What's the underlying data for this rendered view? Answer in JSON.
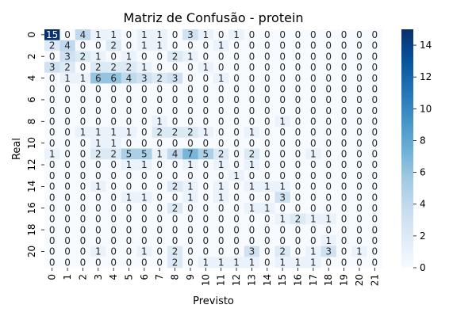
{
  "chart_data": {
    "type": "heatmap",
    "title": "Matriz de Confusão - protein",
    "xlabel": "Previsto",
    "ylabel": "Real",
    "x_tick_labels": [
      "0",
      "1",
      "2",
      "3",
      "4",
      "5",
      "6",
      "7",
      "8",
      "9",
      "10",
      "11",
      "12",
      "13",
      "14",
      "15",
      "16",
      "17",
      "18",
      "19",
      "20",
      "21"
    ],
    "y_tick_labels": [
      "0",
      "2",
      "4",
      "6",
      "8",
      "10",
      "12",
      "14",
      "16",
      "18",
      "20"
    ],
    "y_tick_rows": [
      0,
      2,
      4,
      6,
      8,
      10,
      12,
      14,
      16,
      18,
      20
    ],
    "rows": 22,
    "cols": 22,
    "vmin": 0,
    "vmax": 15,
    "colorbar_ticks": [
      0,
      2,
      4,
      6,
      8,
      10,
      12,
      14
    ],
    "colorbar_labels": [
      "0",
      "2",
      "4",
      "6",
      "8",
      "10",
      "12",
      "14"
    ],
    "colormap": [
      "#f7fbff",
      "#deebf7",
      "#c6dbef",
      "#9ecae1",
      "#6baed6",
      "#4292c6",
      "#2171b5",
      "#08519c",
      "#08306b"
    ],
    "matrix": [
      [
        15,
        0,
        4,
        1,
        1,
        0,
        1,
        1,
        0,
        3,
        1,
        0,
        1,
        0,
        0,
        0,
        0,
        0,
        0,
        0,
        0,
        0
      ],
      [
        2,
        4,
        0,
        0,
        2,
        0,
        1,
        1,
        0,
        0,
        0,
        1,
        0,
        0,
        0,
        0,
        0,
        0,
        0,
        0,
        0,
        0
      ],
      [
        0,
        3,
        2,
        1,
        0,
        1,
        0,
        0,
        2,
        1,
        0,
        0,
        0,
        0,
        0,
        0,
        0,
        0,
        0,
        0,
        0,
        0
      ],
      [
        3,
        2,
        0,
        2,
        2,
        2,
        1,
        0,
        0,
        0,
        1,
        0,
        0,
        0,
        0,
        0,
        0,
        0,
        0,
        0,
        0,
        0
      ],
      [
        0,
        1,
        1,
        6,
        6,
        4,
        3,
        2,
        3,
        0,
        0,
        1,
        0,
        0,
        0,
        0,
        0,
        0,
        0,
        0,
        0,
        0
      ],
      [
        0,
        0,
        0,
        0,
        0,
        0,
        0,
        0,
        0,
        0,
        0,
        0,
        0,
        0,
        0,
        0,
        0,
        0,
        0,
        0,
        0,
        0
      ],
      [
        0,
        0,
        0,
        0,
        0,
        0,
        0,
        0,
        0,
        0,
        0,
        0,
        0,
        0,
        0,
        0,
        0,
        0,
        0,
        0,
        0,
        0
      ],
      [
        0,
        0,
        0,
        0,
        0,
        0,
        0,
        0,
        0,
        0,
        0,
        0,
        0,
        0,
        0,
        0,
        0,
        0,
        0,
        0,
        0,
        0
      ],
      [
        0,
        0,
        0,
        0,
        0,
        0,
        0,
        1,
        0,
        0,
        0,
        0,
        0,
        0,
        0,
        1,
        0,
        0,
        0,
        0,
        0,
        0
      ],
      [
        0,
        0,
        1,
        1,
        1,
        1,
        0,
        2,
        2,
        2,
        1,
        0,
        0,
        1,
        0,
        0,
        0,
        0,
        0,
        0,
        0,
        0
      ],
      [
        0,
        0,
        0,
        1,
        1,
        0,
        0,
        0,
        0,
        0,
        0,
        0,
        0,
        0,
        0,
        0,
        0,
        0,
        0,
        0,
        0,
        0
      ],
      [
        1,
        0,
        0,
        2,
        2,
        5,
        5,
        1,
        4,
        7,
        5,
        2,
        0,
        2,
        0,
        0,
        0,
        1,
        0,
        0,
        0,
        0
      ],
      [
        0,
        0,
        0,
        0,
        0,
        1,
        1,
        0,
        0,
        1,
        0,
        1,
        0,
        1,
        0,
        0,
        0,
        0,
        0,
        0,
        0,
        0
      ],
      [
        0,
        0,
        0,
        0,
        0,
        0,
        0,
        0,
        0,
        0,
        0,
        0,
        1,
        0,
        0,
        0,
        0,
        0,
        0,
        0,
        0,
        0
      ],
      [
        0,
        0,
        0,
        1,
        0,
        0,
        0,
        0,
        2,
        1,
        0,
        1,
        0,
        1,
        1,
        1,
        0,
        0,
        0,
        0,
        0,
        0
      ],
      [
        0,
        0,
        0,
        0,
        0,
        1,
        1,
        0,
        0,
        1,
        0,
        1,
        0,
        0,
        0,
        3,
        0,
        0,
        0,
        0,
        0,
        0
      ],
      [
        0,
        0,
        0,
        0,
        0,
        0,
        0,
        0,
        2,
        0,
        0,
        0,
        0,
        1,
        1,
        0,
        0,
        0,
        0,
        0,
        0,
        0
      ],
      [
        0,
        0,
        0,
        0,
        0,
        0,
        0,
        0,
        0,
        0,
        0,
        0,
        0,
        0,
        0,
        1,
        2,
        1,
        1,
        0,
        0,
        0
      ],
      [
        0,
        0,
        0,
        0,
        0,
        0,
        0,
        0,
        0,
        0,
        0,
        0,
        0,
        0,
        0,
        0,
        0,
        0,
        0,
        0,
        0,
        0
      ],
      [
        0,
        0,
        0,
        0,
        0,
        0,
        0,
        0,
        0,
        0,
        0,
        0,
        0,
        0,
        0,
        0,
        0,
        0,
        1,
        0,
        0,
        0
      ],
      [
        0,
        0,
        0,
        1,
        0,
        0,
        1,
        0,
        2,
        0,
        0,
        0,
        0,
        3,
        0,
        2,
        0,
        1,
        3,
        0,
        1,
        0
      ],
      [
        0,
        0,
        0,
        0,
        0,
        0,
        0,
        0,
        2,
        0,
        1,
        1,
        1,
        1,
        0,
        1,
        1,
        1,
        0,
        0,
        0,
        0
      ]
    ]
  }
}
